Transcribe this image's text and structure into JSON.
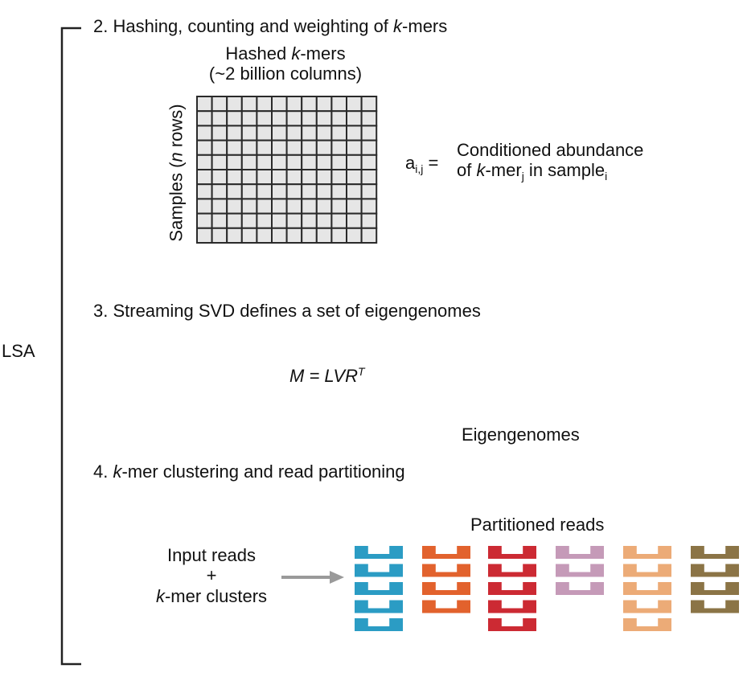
{
  "lsa_label": "LSA",
  "step2": {
    "prefix": "2. Hashing, counting and weighting of ",
    "k": "k",
    "suffix": "-mers",
    "matrix_title_line1_a": "Hashed ",
    "matrix_title_line1_k": "k",
    "matrix_title_line1_b": "-mers",
    "matrix_title_line2": "(~2 billion columns)",
    "rows_label_a": "Samples (",
    "rows_label_n": "n",
    "rows_label_b": " rows)",
    "matrix_rows": 10,
    "matrix_cols": 12,
    "aij_symbol": "a",
    "aij_sub": "i,j",
    "aij_eq": " =",
    "def_line1": "Conditioned abundance",
    "def_line2_a": "of ",
    "def_line2_k": "k",
    "def_line2_b": "-mer",
    "def_line2_sub_j": "j",
    "def_line2_c": " in sample",
    "def_line2_sub_i": "i"
  },
  "step3": {
    "title": "3. Streaming SVD defines a set of eigengenomes",
    "formula": "M = LVR",
    "formula_sup": "T",
    "eigengenomes_label": "Eigengenomes"
  },
  "step4": {
    "prefix": "4. ",
    "k": "k",
    "suffix": "-mer clustering and read partitioning",
    "partitioned_label": "Partitioned reads",
    "input_line1": "Input reads",
    "input_line2": "+",
    "input_line3_k": "k",
    "input_line3_b": "-mer clusters",
    "partitions": [
      {
        "color": "#2b9cc4",
        "count": 5
      },
      {
        "color": "#e2622d",
        "count": 4
      },
      {
        "color": "#cc2a33",
        "count": 5
      },
      {
        "color": "#c59ab8",
        "count": 3
      },
      {
        "color": "#ecab77",
        "count": 5
      },
      {
        "color": "#8b7446",
        "count": 4
      }
    ]
  }
}
